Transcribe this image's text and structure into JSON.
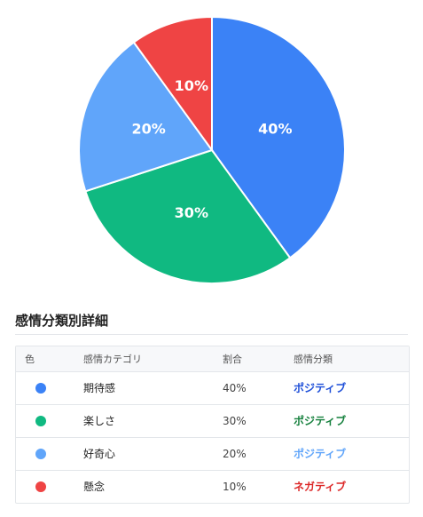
{
  "chart_data": {
    "type": "pie",
    "slices": [
      {
        "label": "期待感",
        "value": 40,
        "value_label": "40%",
        "color": "#3b82f6"
      },
      {
        "label": "楽しさ",
        "value": 30,
        "value_label": "30%",
        "color": "#10b981"
      },
      {
        "label": "好奇心",
        "value": 20,
        "value_label": "20%",
        "color": "#60a5fa"
      },
      {
        "label": "懸念",
        "value": 10,
        "value_label": "10%",
        "color": "#ef4444"
      }
    ]
  },
  "details": {
    "title": "感情分類別詳細",
    "headers": {
      "color": "色",
      "category": "感情カテゴリ",
      "ratio": "割合",
      "classification": "感情分類"
    },
    "rows": [
      {
        "color": "#3b82f6",
        "category": "期待感",
        "ratio": "40%",
        "classification": "ポジティブ",
        "classification_color": "#1d4ed8"
      },
      {
        "color": "#10b981",
        "category": "楽しさ",
        "ratio": "30%",
        "classification": "ポジティブ",
        "classification_color": "#15803d"
      },
      {
        "color": "#60a5fa",
        "category": "好奇心",
        "ratio": "20%",
        "classification": "ポジティブ",
        "classification_color": "#60a5fa"
      },
      {
        "color": "#ef4444",
        "category": "懸念",
        "ratio": "10%",
        "classification": "ネガティブ",
        "classification_color": "#dc2626"
      }
    ]
  }
}
